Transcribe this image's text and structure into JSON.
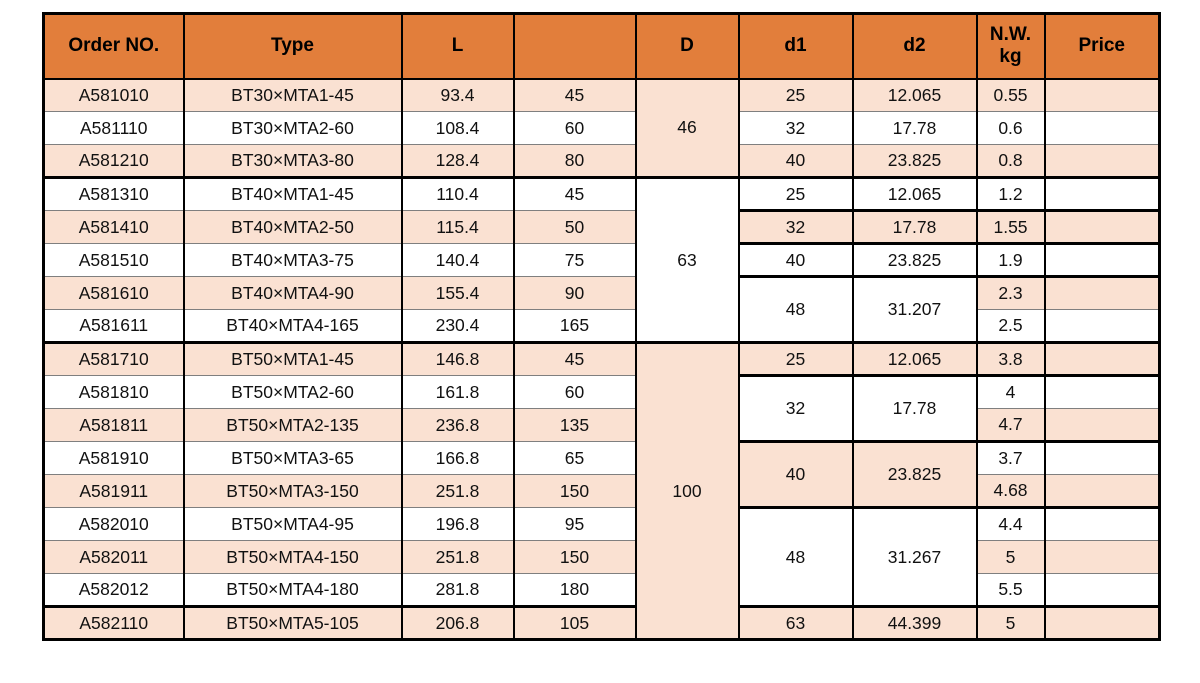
{
  "colors": {
    "header-bg": "#e27e3b",
    "row-alt-bg": "#fae1d2",
    "row-bg": "#ffffff",
    "grid-dark": "#000000",
    "grid-light": "#7f7f7f",
    "text": "#111111"
  },
  "chart_data": {
    "type": "table",
    "title": "",
    "columns": [
      "Order NO.",
      "Type",
      "L",
      "",
      "D",
      "d1",
      "d2",
      "N.W. kg",
      "Price"
    ],
    "col_keys": [
      "order-no",
      "type",
      "l",
      "l2",
      "d",
      "d1",
      "d2",
      "nw-kg",
      "price"
    ],
    "thick_full_after": [
      3,
      8,
      16
    ],
    "thick_right_after": [
      4,
      5,
      6,
      9,
      11,
      13
    ],
    "rows": [
      [
        "A581010",
        "BT30×MTA1-45",
        "93.4",
        "45",
        {
          "v": "46",
          "rowspan": 3,
          "bg": "peach"
        },
        "25",
        "12.065",
        "0.55",
        ""
      ],
      [
        "A581110",
        "BT30×MTA2-60",
        "108.4",
        "60",
        "32",
        "17.78",
        "0.6",
        ""
      ],
      [
        "A581210",
        "BT30×MTA3-80",
        "128.4",
        "80",
        "40",
        "23.825",
        "0.8",
        ""
      ],
      [
        "A581310",
        "BT40×MTA1-45",
        "110.4",
        "45",
        {
          "v": "63",
          "rowspan": 5,
          "bg": "white"
        },
        "25",
        "12.065",
        "1.2",
        ""
      ],
      [
        "A581410",
        "BT40×MTA2-50",
        "115.4",
        "50",
        "32",
        "17.78",
        "1.55",
        ""
      ],
      [
        "A581510",
        "BT40×MTA3-75",
        "140.4",
        "75",
        "40",
        "23.825",
        "1.9",
        ""
      ],
      [
        "A581610",
        "BT40×MTA4-90",
        "155.4",
        "90",
        {
          "v": "48",
          "rowspan": 2,
          "bg": "white"
        },
        {
          "v": "31.207",
          "rowspan": 2,
          "bg": "white"
        },
        "2.3",
        ""
      ],
      [
        "A581611",
        "BT40×MTA4-165",
        "230.4",
        "165",
        "2.5",
        ""
      ],
      [
        "A581710",
        "BT50×MTA1-45",
        "146.8",
        "45",
        {
          "v": "100",
          "rowspan": 9,
          "bg": "peach"
        },
        "25",
        "12.065",
        "3.8",
        ""
      ],
      [
        "A581810",
        "BT50×MTA2-60",
        "161.8",
        "60",
        {
          "v": "32",
          "rowspan": 2,
          "bg": "white"
        },
        {
          "v": "17.78",
          "rowspan": 2,
          "bg": "white"
        },
        "4",
        ""
      ],
      [
        "A581811",
        "BT50×MTA2-135",
        "236.8",
        "135",
        "4.7",
        ""
      ],
      [
        "A581910",
        "BT50×MTA3-65",
        "166.8",
        "65",
        {
          "v": "40",
          "rowspan": 2,
          "bg": "peach"
        },
        {
          "v": "23.825",
          "rowspan": 2,
          "bg": "peach"
        },
        "3.7",
        ""
      ],
      [
        "A581911",
        "BT50×MTA3-150",
        "251.8",
        "150",
        "4.68",
        ""
      ],
      [
        "A582010",
        "BT50×MTA4-95",
        "196.8",
        "95",
        {
          "v": "48",
          "rowspan": 3,
          "bg": "white"
        },
        {
          "v": "31.267",
          "rowspan": 3,
          "bg": "white"
        },
        "4.4",
        ""
      ],
      [
        "A582011",
        "BT50×MTA4-150",
        "251.8",
        "150",
        "5",
        ""
      ],
      [
        "A582012",
        "BT50×MTA4-180",
        "281.8",
        "180",
        "5.5",
        ""
      ],
      [
        "A582110",
        "BT50×MTA5-105",
        "206.8",
        "105",
        "63",
        "44.399",
        "5",
        ""
      ]
    ]
  }
}
